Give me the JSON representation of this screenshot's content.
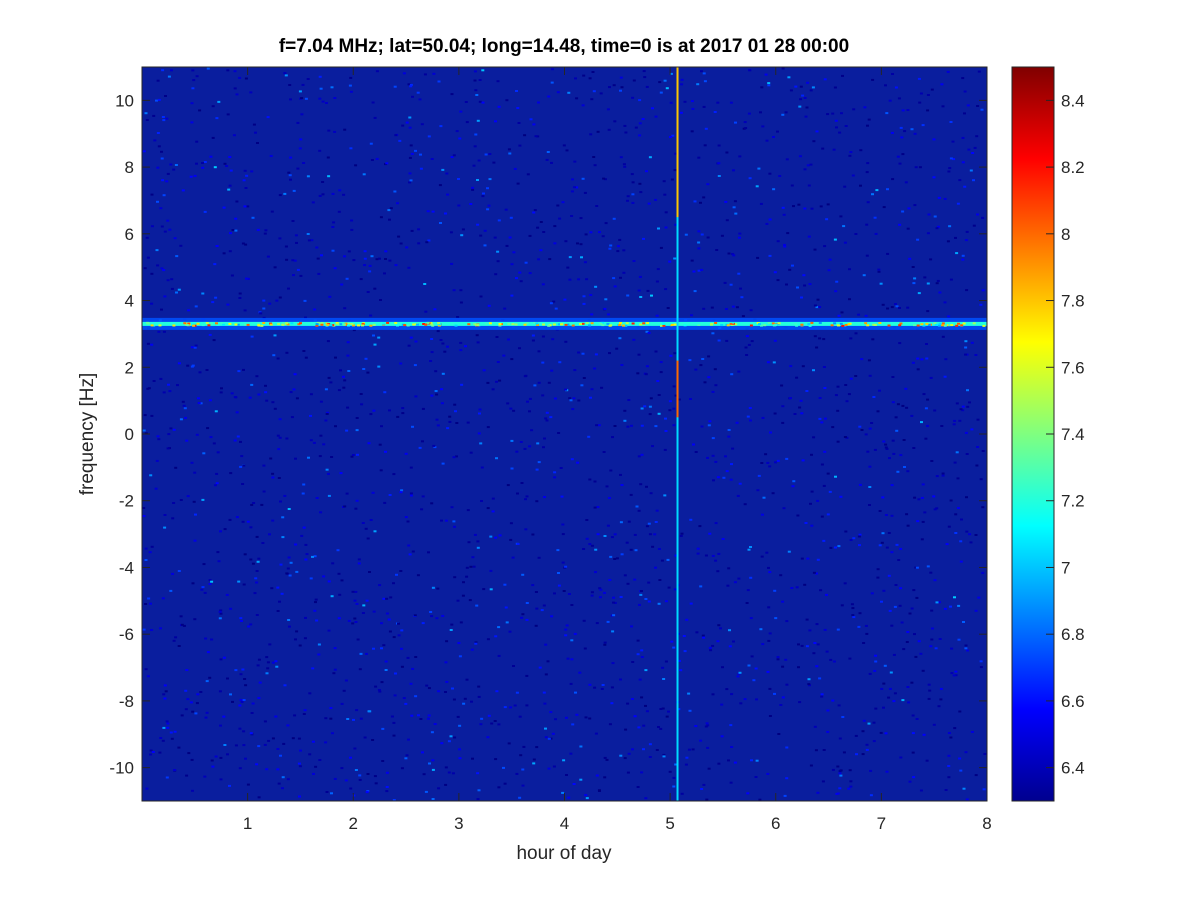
{
  "chart_data": {
    "type": "heatmap",
    "title": "f=7.04 MHz;  lat=50.04; long=14.48, time=0 is at 2017 01 28 00:00",
    "xlabel": "hour of day",
    "ylabel": "frequency [Hz]",
    "xlim": [
      0,
      8
    ],
    "ylim": [
      -11,
      11
    ],
    "x_ticks": [
      "1",
      "2",
      "3",
      "4",
      "5",
      "6",
      "7",
      "8"
    ],
    "y_ticks": [
      "10",
      "8",
      "6",
      "4",
      "2",
      "0",
      "-2",
      "-4",
      "-6",
      "-8",
      "-10"
    ],
    "colorbar": {
      "range": [
        6.3,
        8.5
      ],
      "ticks": [
        "8.4",
        "8.2",
        "8",
        "7.8",
        "7.6",
        "7.4",
        "7.2",
        "7",
        "6.8",
        "6.6",
        "6.4"
      ],
      "colormap": "jet"
    },
    "background_level": 6.4,
    "features": [
      {
        "name": "carrier line",
        "orientation": "horizontal",
        "frequency_hz": 3.3,
        "x_range": [
          0,
          8
        ],
        "level": 7.6
      },
      {
        "name": "broadband spike",
        "orientation": "vertical",
        "hour": 5.07,
        "y_range": [
          -11,
          11
        ],
        "level": 8.0
      }
    ]
  }
}
